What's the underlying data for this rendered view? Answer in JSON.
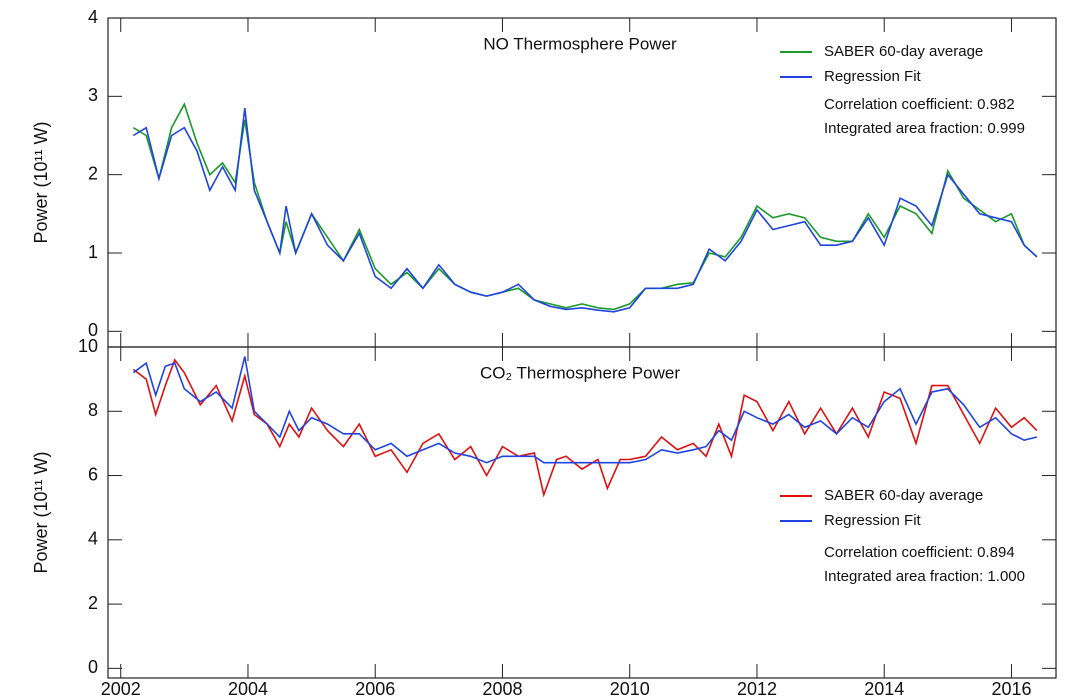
{
  "chart_data": [
    {
      "type": "line",
      "title": "NO Thermosphere Power",
      "y_label": "Power (10¹¹ W)",
      "x": [
        2002.2,
        2002.4,
        2002.6,
        2002.8,
        2003.0,
        2003.2,
        2003.4,
        2003.6,
        2003.8,
        2003.95,
        2004.1,
        2004.3,
        2004.5,
        2004.6,
        2004.75,
        2005.0,
        2005.25,
        2005.5,
        2005.75,
        2006.0,
        2006.25,
        2006.5,
        2006.75,
        2007.0,
        2007.25,
        2007.5,
        2007.75,
        2008.0,
        2008.25,
        2008.5,
        2008.75,
        2009.0,
        2009.25,
        2009.5,
        2009.75,
        2010.0,
        2010.25,
        2010.5,
        2010.75,
        2011.0,
        2011.25,
        2011.5,
        2011.75,
        2012.0,
        2012.25,
        2012.5,
        2012.75,
        2013.0,
        2013.25,
        2013.5,
        2013.75,
        2014.0,
        2014.25,
        2014.5,
        2014.75,
        2015.0,
        2015.25,
        2015.5,
        2015.75,
        2016.0,
        2016.2,
        2016.4
      ],
      "series": [
        {
          "name": "SABER 60-day average",
          "color": "#1a9a2a",
          "values": [
            2.6,
            2.5,
            1.95,
            2.6,
            2.9,
            2.4,
            2.0,
            2.15,
            1.9,
            2.7,
            1.9,
            1.4,
            1.0,
            1.4,
            1.0,
            1.5,
            1.2,
            0.9,
            1.3,
            0.8,
            0.6,
            0.75,
            0.55,
            0.8,
            0.6,
            0.5,
            0.45,
            0.5,
            0.55,
            0.4,
            0.35,
            0.3,
            0.35,
            0.3,
            0.28,
            0.35,
            0.55,
            0.55,
            0.6,
            0.62,
            1.0,
            0.95,
            1.2,
            1.6,
            1.45,
            1.5,
            1.45,
            1.2,
            1.15,
            1.15,
            1.5,
            1.2,
            1.6,
            1.5,
            1.25,
            2.05,
            1.7,
            1.55,
            1.4,
            1.5,
            1.1,
            0.95
          ]
        },
        {
          "name": "Regression Fit",
          "color": "#1f44e0",
          "values": [
            2.5,
            2.6,
            1.95,
            2.5,
            2.6,
            2.3,
            1.8,
            2.1,
            1.8,
            2.85,
            1.8,
            1.4,
            1.0,
            1.6,
            1.0,
            1.5,
            1.1,
            0.9,
            1.25,
            0.7,
            0.55,
            0.8,
            0.55,
            0.85,
            0.6,
            0.5,
            0.45,
            0.5,
            0.6,
            0.4,
            0.32,
            0.28,
            0.3,
            0.27,
            0.25,
            0.3,
            0.55,
            0.55,
            0.55,
            0.6,
            1.05,
            0.9,
            1.15,
            1.55,
            1.3,
            1.35,
            1.4,
            1.1,
            1.1,
            1.15,
            1.45,
            1.1,
            1.7,
            1.6,
            1.35,
            2.0,
            1.75,
            1.5,
            1.45,
            1.4,
            1.1,
            0.95
          ]
        }
      ],
      "xlim": [
        2001.8,
        2016.7
      ],
      "ylim": [
        -0.2,
        4
      ],
      "yticks": [
        0,
        1,
        2,
        3,
        4
      ],
      "annotations": [
        "Correlation coefficient: 0.982",
        "Integrated area fraction: 0.999"
      ]
    },
    {
      "type": "line",
      "title": "CO₂ Thermosphere Power",
      "y_label": "Power (10¹¹ W)",
      "x": [
        2002.2,
        2002.4,
        2002.55,
        2002.7,
        2002.85,
        2003.0,
        2003.25,
        2003.5,
        2003.75,
        2003.95,
        2004.1,
        2004.3,
        2004.5,
        2004.65,
        2004.8,
        2005.0,
        2005.25,
        2005.5,
        2005.75,
        2006.0,
        2006.25,
        2006.5,
        2006.75,
        2007.0,
        2007.25,
        2007.5,
        2007.75,
        2008.0,
        2008.25,
        2008.5,
        2008.65,
        2008.85,
        2009.0,
        2009.25,
        2009.5,
        2009.65,
        2009.85,
        2010.0,
        2010.25,
        2010.5,
        2010.75,
        2011.0,
        2011.2,
        2011.4,
        2011.6,
        2011.8,
        2012.0,
        2012.25,
        2012.5,
        2012.75,
        2013.0,
        2013.25,
        2013.5,
        2013.75,
        2014.0,
        2014.25,
        2014.5,
        2014.75,
        2015.0,
        2015.25,
        2015.5,
        2015.75,
        2016.0,
        2016.2,
        2016.4
      ],
      "series": [
        {
          "name": "SABER 60-day average",
          "color": "#e01010",
          "values": [
            9.3,
            9.0,
            7.9,
            8.8,
            9.6,
            9.2,
            8.2,
            8.8,
            7.7,
            9.1,
            7.9,
            7.6,
            6.9,
            7.6,
            7.2,
            8.1,
            7.4,
            6.9,
            7.6,
            6.6,
            6.8,
            6.1,
            7.0,
            7.3,
            6.5,
            6.9,
            6.0,
            6.9,
            6.6,
            6.7,
            5.4,
            6.5,
            6.6,
            6.2,
            6.5,
            5.6,
            6.5,
            6.5,
            6.6,
            7.2,
            6.8,
            7.0,
            6.6,
            7.6,
            6.6,
            8.5,
            8.3,
            7.4,
            8.3,
            7.3,
            8.1,
            7.3,
            8.1,
            7.2,
            8.6,
            8.4,
            7.0,
            8.8,
            8.8,
            7.9,
            7.0,
            8.1,
            7.5,
            7.8,
            7.4
          ]
        },
        {
          "name": "Regression Fit",
          "color": "#1f44e0",
          "values": [
            9.2,
            9.5,
            8.5,
            9.4,
            9.5,
            8.7,
            8.3,
            8.6,
            8.1,
            9.7,
            8.0,
            7.6,
            7.2,
            8.0,
            7.4,
            7.8,
            7.6,
            7.3,
            7.3,
            6.8,
            7.0,
            6.6,
            6.8,
            7.0,
            6.7,
            6.6,
            6.4,
            6.6,
            6.6,
            6.6,
            6.4,
            6.4,
            6.4,
            6.4,
            6.4,
            6.4,
            6.4,
            6.4,
            6.5,
            6.8,
            6.7,
            6.8,
            6.9,
            7.4,
            7.1,
            8.0,
            7.8,
            7.6,
            7.9,
            7.5,
            7.7,
            7.3,
            7.8,
            7.5,
            8.3,
            8.7,
            7.6,
            8.6,
            8.7,
            8.2,
            7.5,
            7.8,
            7.3,
            7.1,
            7.2
          ]
        }
      ],
      "xlim": [
        2001.8,
        2016.7
      ],
      "ylim": [
        -0.3,
        10
      ],
      "yticks": [
        0,
        2,
        4,
        6,
        8,
        10
      ],
      "xticks": [
        2002,
        2004,
        2006,
        2008,
        2010,
        2012,
        2014,
        2016
      ],
      "annotations": [
        "Correlation coefficient: 0.894",
        "Integrated area fraction: 1.000"
      ]
    }
  ]
}
